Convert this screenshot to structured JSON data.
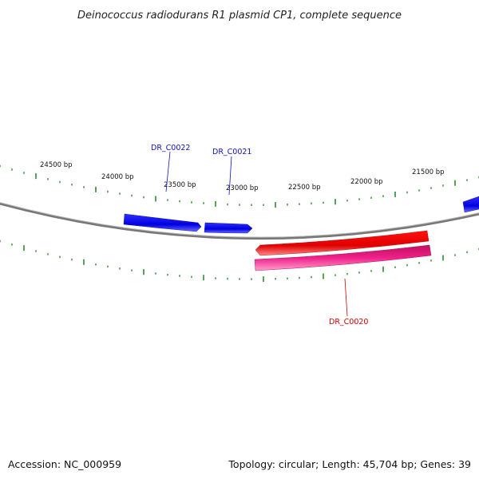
{
  "title": "Deinococcus radiodurans R1 plasmid CP1, complete sequence",
  "footer": {
    "accession": "Accession: NC_000959",
    "summary": "Topology: circular; Length: 45,704 bp; Genes: 39"
  },
  "colors": {
    "backbone": "#8a8a8a",
    "tick": "#2e8b2e",
    "forward_gene": "#1010e0",
    "reverse_gene": "#e00000",
    "feature_pink": "#e8187a",
    "forward_label": "#1010c0",
    "reverse_label": "#d00000"
  },
  "scale": {
    "labels": [
      "24500 bp",
      "24000 bp",
      "23500 bp",
      "23000 bp",
      "22500 bp",
      "22000 bp",
      "21500 bp"
    ]
  },
  "genes": [
    {
      "label": "DR_C0022",
      "strand": "forward"
    },
    {
      "label": "DR_C0021",
      "strand": "forward"
    },
    {
      "label": "DR_C0020",
      "strand": "reverse"
    }
  ]
}
